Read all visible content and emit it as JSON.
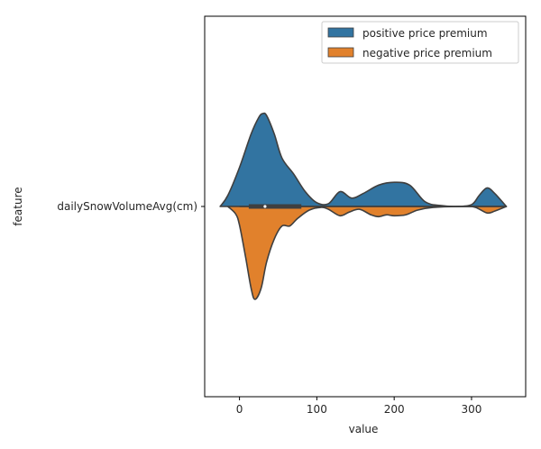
{
  "chart_data": {
    "type": "violin",
    "xlabel": "value",
    "ylabel": "feature",
    "xlim": [
      -45,
      370
    ],
    "xticks": [
      0,
      100,
      200,
      300
    ],
    "categories": [
      "dailySnowVolumeAvg(cm)"
    ],
    "legend": {
      "placement": "upper-right"
    },
    "colors": {
      "positive": "#3274a1",
      "negative": "#e1812c",
      "outline": "#3f3f3f"
    },
    "series": [
      {
        "name": "positive price premium",
        "side": "upper",
        "color": "#3274a1",
        "density": [
          [
            -25,
            0.0
          ],
          [
            -15,
            0.12
          ],
          [
            0,
            0.42
          ],
          [
            15,
            0.78
          ],
          [
            25,
            0.96
          ],
          [
            30,
            1.0
          ],
          [
            35,
            0.98
          ],
          [
            45,
            0.78
          ],
          [
            55,
            0.52
          ],
          [
            70,
            0.35
          ],
          [
            85,
            0.16
          ],
          [
            100,
            0.04
          ],
          [
            115,
            0.03
          ],
          [
            130,
            0.16
          ],
          [
            145,
            0.09
          ],
          [
            160,
            0.14
          ],
          [
            180,
            0.23
          ],
          [
            200,
            0.26
          ],
          [
            220,
            0.23
          ],
          [
            240,
            0.05
          ],
          [
            260,
            0.01
          ],
          [
            280,
            0.0
          ],
          [
            300,
            0.02
          ],
          [
            310,
            0.12
          ],
          [
            320,
            0.2
          ],
          [
            330,
            0.14
          ],
          [
            345,
            0.0
          ]
        ]
      },
      {
        "name": "negative price premium",
        "side": "lower",
        "color": "#e1812c",
        "density": [
          [
            -15,
            0.0
          ],
          [
            -5,
            0.08
          ],
          [
            0,
            0.2
          ],
          [
            8,
            0.55
          ],
          [
            15,
            0.88
          ],
          [
            20,
            1.0
          ],
          [
            28,
            0.88
          ],
          [
            35,
            0.6
          ],
          [
            45,
            0.35
          ],
          [
            55,
            0.21
          ],
          [
            65,
            0.21
          ],
          [
            75,
            0.13
          ],
          [
            90,
            0.04
          ],
          [
            105,
            0.01
          ],
          [
            115,
            0.03
          ],
          [
            130,
            0.1
          ],
          [
            142,
            0.06
          ],
          [
            155,
            0.03
          ],
          [
            170,
            0.09
          ],
          [
            180,
            0.11
          ],
          [
            190,
            0.09
          ],
          [
            200,
            0.1
          ],
          [
            215,
            0.09
          ],
          [
            230,
            0.04
          ],
          [
            250,
            0.01
          ],
          [
            290,
            0.0
          ],
          [
            305,
            0.01
          ],
          [
            320,
            0.07
          ],
          [
            330,
            0.05
          ],
          [
            345,
            0.0
          ]
        ]
      }
    ],
    "boxplot": {
      "q1": 12,
      "median": 33,
      "q3": 80,
      "whisker_low": 0,
      "whisker_high": 345
    }
  },
  "legend_items": {
    "positive": "positive price premium",
    "negative": "negative price premium"
  }
}
